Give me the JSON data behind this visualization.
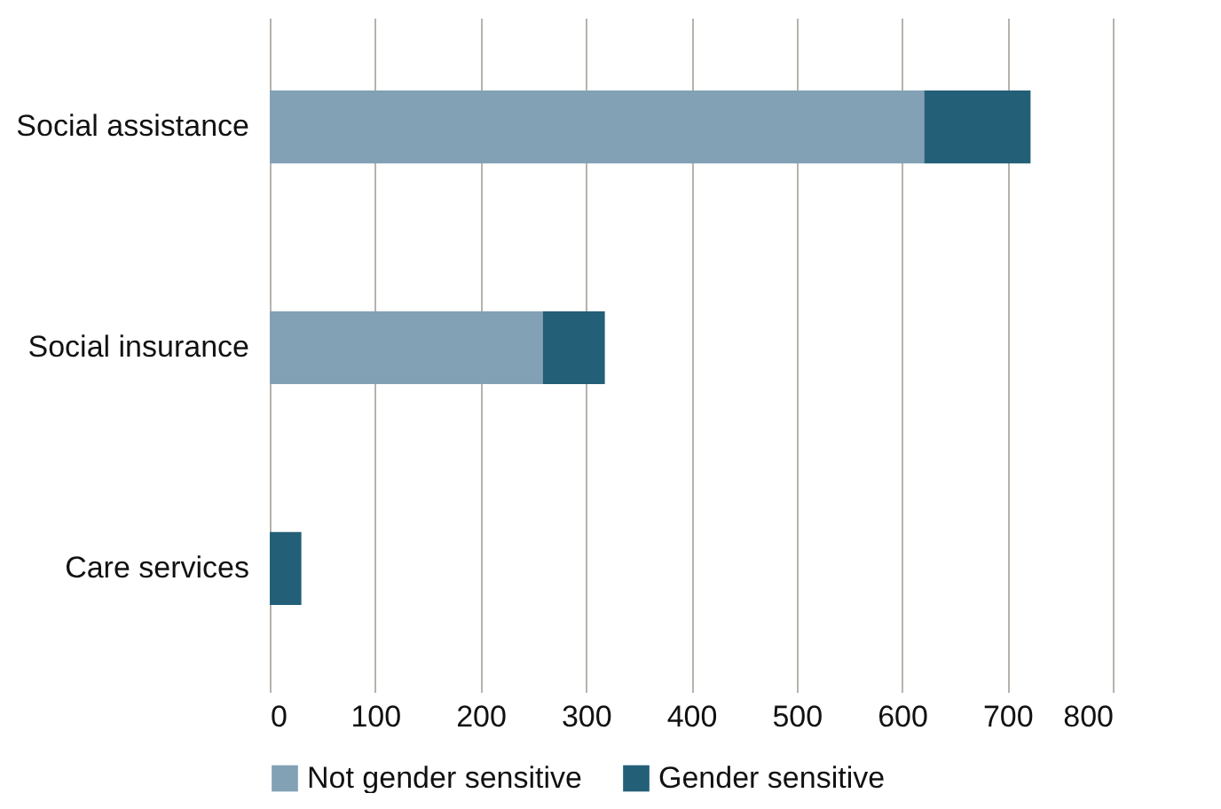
{
  "chart_data": {
    "type": "bar",
    "orientation": "horizontal",
    "stacked": true,
    "categories": [
      "Social assistance",
      "Social insurance",
      "Care services"
    ],
    "series": [
      {
        "name": "Not gender sensitive",
        "color": "#82a1b5",
        "values": [
          621,
          259,
          0
        ]
      },
      {
        "name": "Gender sensitive",
        "color": "#245f78",
        "values": [
          101,
          59,
          30
        ]
      }
    ],
    "xlim": [
      0,
      800
    ],
    "xticks": [
      0,
      100,
      200,
      300,
      400,
      500,
      600,
      700,
      800
    ],
    "grid": "x",
    "legend": "bottom"
  }
}
